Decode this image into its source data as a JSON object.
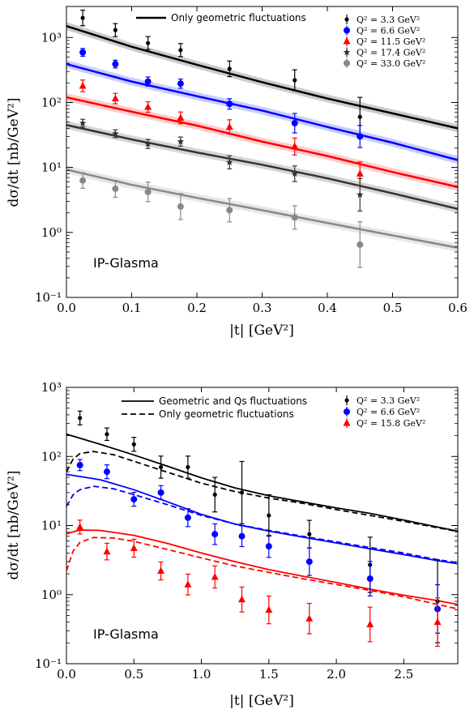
{
  "chart_data": [
    {
      "type": "scatter",
      "title": "",
      "xlabel": "|t| [GeV²]",
      "ylabel": "dσ/dt [nb/GeV²]",
      "xlim": [
        0.0,
        0.6
      ],
      "ylim": [
        0.1,
        3000
      ],
      "yscale": "log",
      "x_ticks": [
        "0.0",
        "0.1",
        "0.2",
        "0.3",
        "0.4",
        "0.5",
        "0.6"
      ],
      "y_ticks": [
        "10⁻¹",
        "10⁰",
        "10¹",
        "10²",
        "10³"
      ],
      "annotation": "IP-Glasma",
      "curve_legend": [
        {
          "name": "Only geometric fluctuations",
          "style": "solid",
          "color": "#000000"
        }
      ],
      "series": [
        {
          "name": "Q² = 3.3 GeV²",
          "color": "#000000",
          "marker": "circle-small",
          "x": [
            0.025,
            0.075,
            0.125,
            0.175,
            0.25,
            0.35,
            0.45
          ],
          "y": [
            2000,
            1300,
            820,
            640,
            330,
            220,
            60
          ],
          "err": [
            0.12,
            0.1,
            0.1,
            0.1,
            0.12,
            0.16,
            0.3
          ],
          "curve": {
            "x": [
              0.0,
              0.1,
              0.2,
              0.3,
              0.4,
              0.5,
              0.6
            ],
            "y": [
              1500,
              720,
              380,
              205,
              115,
              68,
              40
            ]
          }
        },
        {
          "name": "Q² = 6.6 GeV²",
          "color": "#0000ff",
          "marker": "circle",
          "x": [
            0.025,
            0.075,
            0.125,
            0.175,
            0.25,
            0.35,
            0.45
          ],
          "y": [
            590,
            390,
            210,
            195,
            95,
            48,
            30
          ],
          "err": [
            0.06,
            0.06,
            0.07,
            0.07,
            0.08,
            0.15,
            0.17
          ],
          "curve": {
            "x": [
              0.0,
              0.1,
              0.2,
              0.3,
              0.4,
              0.5,
              0.6
            ],
            "y": [
              390,
              210,
              125,
              75,
              42,
              24,
              13
            ]
          }
        },
        {
          "name": "Q² = 11.5 GeV²",
          "color": "#ff0000",
          "marker": "triangle",
          "x": [
            0.025,
            0.075,
            0.125,
            0.175,
            0.25,
            0.35,
            0.45
          ],
          "y": [
            180,
            115,
            85,
            58,
            42,
            21,
            8
          ],
          "err": [
            0.09,
            0.08,
            0.08,
            0.09,
            0.11,
            0.13,
            0.18
          ],
          "curve": {
            "x": [
              0.0,
              0.1,
              0.2,
              0.3,
              0.4,
              0.5,
              0.6
            ],
            "y": [
              120,
              72,
              44,
              25,
              15,
              8.5,
              5
            ]
          }
        },
        {
          "name": "Q² = 17.4 GeV²",
          "color": "#333333",
          "marker": "star",
          "x": [
            0.025,
            0.075,
            0.125,
            0.175,
            0.25,
            0.35,
            0.45
          ],
          "y": [
            48,
            33,
            23,
            25,
            12,
            8,
            3.8
          ],
          "err": [
            0.06,
            0.06,
            0.07,
            0.07,
            0.1,
            0.12,
            0.25
          ],
          "curve": {
            "x": [
              0.0,
              0.1,
              0.2,
              0.3,
              0.4,
              0.5,
              0.6
            ],
            "y": [
              45,
              27,
              17,
              11,
              6.8,
              4.0,
              2.3
            ]
          }
        },
        {
          "name": "Q² = 33.0 GeV²",
          "color": "#888888",
          "marker": "circle",
          "x": [
            0.025,
            0.075,
            0.125,
            0.175,
            0.25,
            0.35,
            0.45
          ],
          "y": [
            6.3,
            4.7,
            4.2,
            2.5,
            2.2,
            1.7,
            0.65
          ],
          "err": [
            0.12,
            0.13,
            0.15,
            0.2,
            0.18,
            0.18,
            0.35
          ],
          "curve": {
            "x": [
              0.0,
              0.1,
              0.2,
              0.3,
              0.4,
              0.5,
              0.6
            ],
            "y": [
              9.3,
              5.4,
              3.4,
              2.2,
              1.4,
              0.9,
              0.58
            ]
          }
        }
      ]
    },
    {
      "type": "scatter",
      "title": "",
      "xlabel": "|t| [GeV²]",
      "ylabel": "dσ/dt [nb/GeV²]",
      "xlim": [
        0.0,
        2.9
      ],
      "ylim": [
        0.1,
        1000
      ],
      "yscale": "log",
      "x_ticks": [
        "0.0",
        "0.5",
        "1.0",
        "1.5",
        "2.0",
        "2.5"
      ],
      "y_ticks": [
        "10⁻¹",
        "10⁰",
        "10¹",
        "10²",
        "10³"
      ],
      "annotation": "IP-Glasma",
      "curve_legend": [
        {
          "name": "Geometric and Qs fluctuations",
          "style": "solid",
          "color": "#000000"
        },
        {
          "name": "Only geometric fluctuations",
          "style": "dashed",
          "color": "#000000"
        }
      ],
      "series": [
        {
          "name": "Q² = 3.3 GeV²",
          "color": "#000000",
          "marker": "circle-small",
          "x": [
            0.1,
            0.3,
            0.5,
            0.7,
            0.9,
            1.1,
            1.3,
            1.5,
            1.8,
            2.25,
            2.75
          ],
          "y": [
            360,
            210,
            150,
            70,
            70,
            28,
            30,
            14,
            7.5,
            2.7,
            0.8
          ],
          "err": [
            0.1,
            0.09,
            0.1,
            0.16,
            0.16,
            0.25,
            0.45,
            0.3,
            0.2,
            0.4,
            0.6
          ],
          "curve_solid": {
            "x": [
              0.0,
              0.25,
              0.5,
              0.75,
              1.0,
              1.25,
              1.5,
              1.75,
              2.0,
              2.25,
              2.5,
              2.75,
              2.9
            ],
            "y": [
              210,
              150,
              105,
              72,
              49,
              35,
              27,
              22,
              18,
              15,
              12,
              9.5,
              8.3
            ]
          },
          "curve_dashed": {
            "x": [
              0.0,
              0.05,
              0.1,
              0.2,
              0.35,
              0.5,
              0.75,
              1.0,
              1.25,
              1.5,
              1.75,
              2.0,
              2.25,
              2.5,
              2.75,
              2.9
            ],
            "y": [
              60,
              92,
              110,
              118,
              106,
              85,
              59,
              41,
              31,
              25,
              21,
              17,
              14,
              11.5,
              9.3,
              8.2
            ]
          }
        },
        {
          "name": "Q² = 6.6 GeV²",
          "color": "#0000ff",
          "marker": "circle",
          "x": [
            0.1,
            0.3,
            0.5,
            0.7,
            0.9,
            1.1,
            1.3,
            1.5,
            1.8,
            2.25,
            2.75
          ],
          "y": [
            75,
            60,
            24,
            30,
            13,
            7.5,
            7,
            5,
            3,
            1.7,
            0.62
          ],
          "err": [
            0.08,
            0.1,
            0.1,
            0.1,
            0.13,
            0.15,
            0.15,
            0.16,
            0.2,
            0.25,
            0.35
          ],
          "curve_solid": {
            "x": [
              0.0,
              0.25,
              0.5,
              0.75,
              1.0,
              1.25,
              1.5,
              1.75,
              2.0,
              2.25,
              2.5,
              2.75,
              2.9
            ],
            "y": [
              55,
              46,
              33,
              22,
              14.5,
              10.5,
              8.3,
              6.8,
              5.6,
              4.6,
              3.8,
              3.1,
              2.8
            ]
          },
          "curve_dashed": {
            "x": [
              0.0,
              0.05,
              0.1,
              0.2,
              0.35,
              0.5,
              0.75,
              1.0,
              1.25,
              1.5,
              1.75,
              2.0,
              2.25,
              2.5,
              2.75,
              2.9
            ],
            "y": [
              19,
              28,
              33,
              37,
              34,
              28,
              20,
              14,
              10.5,
              8.5,
              7.0,
              5.8,
              4.8,
              4.0,
              3.2,
              2.9
            ]
          }
        },
        {
          "name": "Q² = 15.8 GeV²",
          "color": "#ff0000",
          "marker": "triangle",
          "x": [
            0.1,
            0.3,
            0.5,
            0.7,
            0.9,
            1.1,
            1.3,
            1.5,
            1.8,
            2.25,
            2.75
          ],
          "y": [
            9.5,
            4.2,
            4.7,
            2.2,
            1.4,
            1.8,
            0.85,
            0.6,
            0.45,
            0.37,
            0.4
          ],
          "err": [
            0.1,
            0.12,
            0.13,
            0.13,
            0.15,
            0.16,
            0.18,
            0.2,
            0.22,
            0.25,
            0.35
          ],
          "curve_solid": {
            "x": [
              0.0,
              0.1,
              0.25,
              0.5,
              0.75,
              1.0,
              1.25,
              1.5,
              1.75,
              2.0,
              2.25,
              2.5,
              2.75,
              2.9
            ],
            "y": [
              7.6,
              8.6,
              8.5,
              7.2,
              5.5,
              4.0,
              3.0,
              2.3,
              1.85,
              1.5,
              1.2,
              0.98,
              0.82,
              0.72
            ]
          },
          "curve_dashed": {
            "x": [
              0.0,
              0.05,
              0.1,
              0.2,
              0.35,
              0.5,
              0.75,
              1.0,
              1.25,
              1.5,
              1.75,
              2.0,
              2.25,
              2.5,
              2.75,
              2.9
            ],
            "y": [
              2.2,
              4.3,
              5.7,
              6.7,
              6.6,
              5.9,
              4.5,
              3.4,
              2.6,
              2.1,
              1.7,
              1.4,
              1.15,
              0.93,
              0.72,
              0.62
            ]
          }
        }
      ]
    }
  ]
}
